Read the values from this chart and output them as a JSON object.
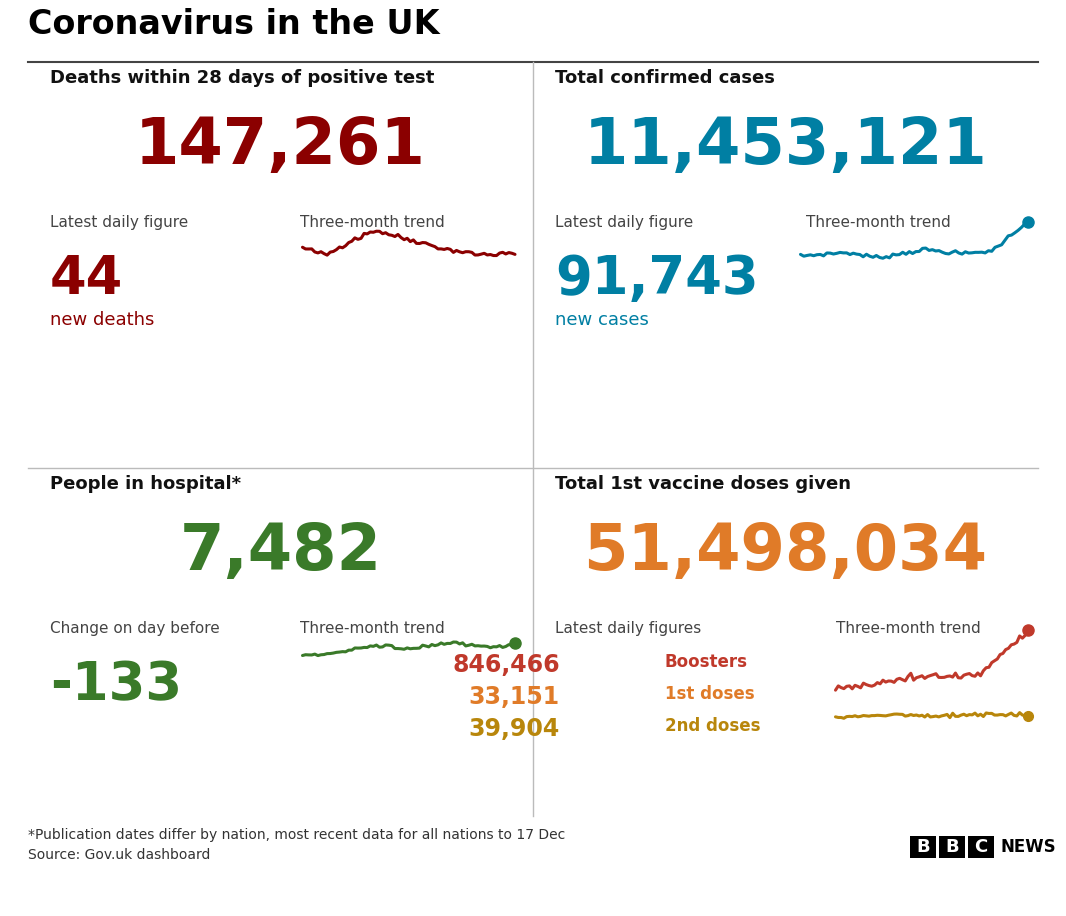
{
  "title": "Coronavirus in the UK",
  "background_color": "#ffffff",
  "panel1": {
    "heading": "Deaths within 28 days of positive test",
    "total": "147,261",
    "total_color": "#8B0000",
    "label_left": "Latest daily figure",
    "label_right": "Three-month trend",
    "daily": "44",
    "daily_color": "#8B0000",
    "daily_sub": "new deaths",
    "daily_sub_color": "#8B0000",
    "trend_color": "#8B0000"
  },
  "panel2": {
    "heading": "Total confirmed cases",
    "total": "11,453,121",
    "total_color": "#007fa3",
    "label_left": "Latest daily figure",
    "label_right": "Three-month trend",
    "daily": "91,743",
    "daily_color": "#007fa3",
    "daily_sub": "new cases",
    "daily_sub_color": "#007fa3",
    "trend_color": "#007fa3"
  },
  "panel3": {
    "heading": "People in hospital*",
    "total": "7,482",
    "total_color": "#3a7a29",
    "label_left": "Change on day before",
    "label_right": "Three-month trend",
    "daily": "-133",
    "daily_color": "#3a7a29",
    "trend_color": "#3a7a29"
  },
  "panel4": {
    "heading": "Total 1st vaccine doses given",
    "total": "51,498,034",
    "total_color": "#e07b28",
    "label_left": "Latest daily figures",
    "label_right": "Three-month trend",
    "boosters_val": "846,466",
    "boosters_label": "Boosters",
    "boosters_color": "#c0392b",
    "doses1_val": "33,151",
    "doses1_label": "1st doses",
    "doses1_color": "#e07b28",
    "doses2_val": "39,904",
    "doses2_label": "2nd doses",
    "doses2_color": "#b8860b",
    "trend_color_boosters": "#c0392b",
    "trend_color_doses": "#b8860b"
  },
  "footer1": "*Publication dates differ by nation, most recent data for all nations to 17 Dec",
  "footer2": "Source: Gov.uk dashboard"
}
